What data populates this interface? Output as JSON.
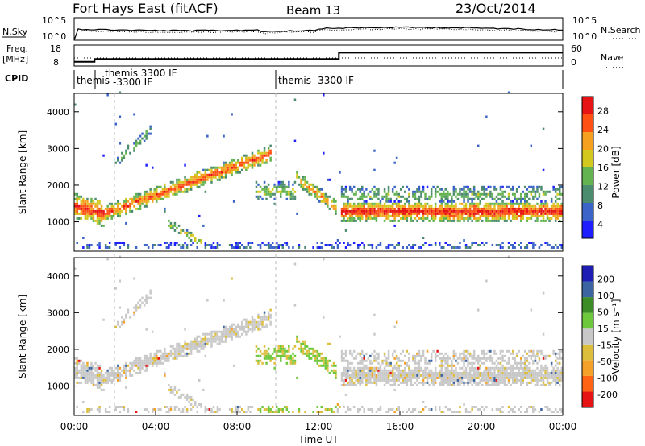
{
  "header": {
    "station": "Fort Hays East (fitACF)",
    "beam": "Beam 13",
    "date": "23/Oct/2014"
  },
  "top_panels": {
    "nsky_label": "N.Sky",
    "nsky_ticks": [
      "10^5",
      "10^0"
    ],
    "nsearch_label": "N.Search",
    "nsearch_ticks": [
      "10^5",
      "10^0"
    ],
    "freq_label_1": "Freq.",
    "freq_label_2": "[MHz]",
    "freq_ticks": [
      "18",
      "8"
    ],
    "nave_label": "Nave",
    "nave_ticks": [
      "60",
      "0"
    ],
    "cpid_label": "CPID",
    "cpid_segments": [
      {
        "start_h": 0.0,
        "end_h": 1.0,
        "label": "themis"
      },
      {
        "start_h": 1.0,
        "end_h": 10.0,
        "label": "themis 3300 IF"
      },
      {
        "start_h": 10.0,
        "end_h": 24.0,
        "label": "themis -3300 IF"
      }
    ],
    "cpid_sublabel": "-3300 IF",
    "freq_steps": [
      {
        "start_h": 0.0,
        "end_h": 1.0,
        "mhz": 10.0
      },
      {
        "start_h": 1.0,
        "end_h": 13.0,
        "mhz": 11.4
      },
      {
        "start_h": 13.0,
        "end_h": 24.0,
        "mhz": 14.4
      }
    ]
  },
  "chart_data": [
    {
      "type": "heatmap",
      "title": "Power",
      "ylabel": "Slant Range [km]",
      "xlabel": "",
      "xlim_hours": [
        0,
        24
      ],
      "ylim": [
        200,
        4500
      ],
      "yticks": [
        "1000",
        "2000",
        "3000",
        "4000"
      ],
      "colorbar_label": "Power [dB]",
      "colorbar_ticks": [
        "28",
        "24",
        "20",
        "16",
        "12",
        "8",
        "4"
      ],
      "colorbar_range": [
        0,
        32
      ],
      "colors": [
        "#1e1eff",
        "#3c64c8",
        "#4b8c6e",
        "#63b450",
        "#d2c81e",
        "#f5a01e",
        "#ff5014",
        "#e61414"
      ],
      "features": [
        {
          "name": "backscatter-band-main",
          "t_start_h": 0.0,
          "t_end_h": 9.6,
          "range_start_km": 1200,
          "range_end_km": 3000,
          "peak_db": 24
        },
        {
          "name": "backscatter-band-late",
          "t_start_h": 13.0,
          "t_end_h": 24.0,
          "range_start_km": 1100,
          "range_end_km": 1400,
          "peak_db": 26
        }
      ]
    },
    {
      "type": "heatmap",
      "title": "Velocity",
      "ylabel": "Slant Range [km]",
      "xlabel": "Time UT",
      "xlim_hours": [
        0,
        24
      ],
      "ylim": [
        200,
        4500
      ],
      "yticks": [
        "1000",
        "2000",
        "3000",
        "4000"
      ],
      "xticks": [
        "00:00",
        "04:00",
        "08:00",
        "12:00",
        "16:00",
        "20:00",
        "00:00"
      ],
      "colorbar_label": "Velocity [m s⁻¹]",
      "colorbar_ticks": [
        "200",
        "100",
        "50",
        "15",
        "-15",
        "-50",
        "-100",
        "-200"
      ],
      "colorbar_range": [
        -250,
        250
      ],
      "colors": [
        "#e61414",
        "#ff6414",
        "#f5a028",
        "#dcbe3c",
        "#c8c8c8",
        "#6ec83c",
        "#3c8c28",
        "#3c64a0",
        "#1e1eb4"
      ]
    }
  ]
}
